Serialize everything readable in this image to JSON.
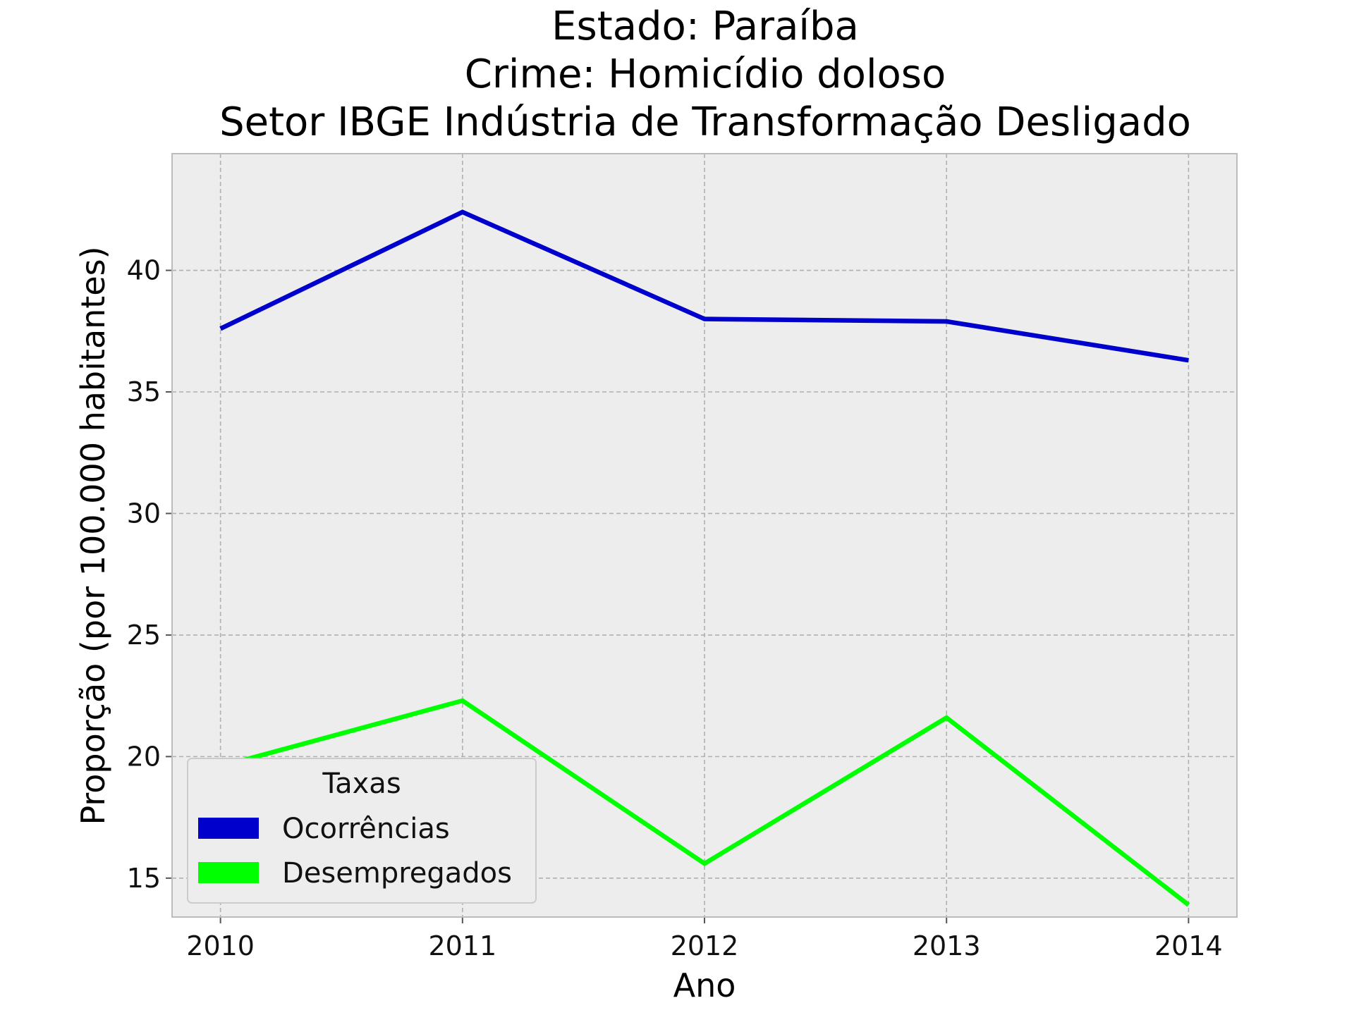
{
  "chart_data": {
    "type": "line",
    "title_lines": [
      "Estado: Paraíba",
      "Crime: Homicídio doloso",
      "Setor IBGE  Indústria de Transformação   Desligado"
    ],
    "xlabel": "Ano",
    "ylabel": "Proporção (por 100.000 habitantes)",
    "x": [
      2010,
      2011,
      2012,
      2013,
      2014
    ],
    "x_tick_labels": [
      "2010",
      "2011",
      "2012",
      "2013",
      "2014"
    ],
    "y_ticks": [
      15,
      20,
      25,
      30,
      35,
      40
    ],
    "y_tick_labels": [
      "15",
      "20",
      "25",
      "30",
      "35",
      "40"
    ],
    "xlim": [
      2009.8,
      2014.2
    ],
    "ylim": [
      13.4,
      44.8
    ],
    "grid": true,
    "legend": {
      "title": "Taxas",
      "placement": "lower-left"
    },
    "series": [
      {
        "name": "Ocorrências",
        "color": "#0000cc",
        "values": [
          37.6,
          42.4,
          38.0,
          37.9,
          36.3
        ]
      },
      {
        "name": "Desempregados",
        "color": "#00ff00",
        "values": [
          19.6,
          22.3,
          15.6,
          21.6,
          13.9
        ]
      }
    ]
  }
}
